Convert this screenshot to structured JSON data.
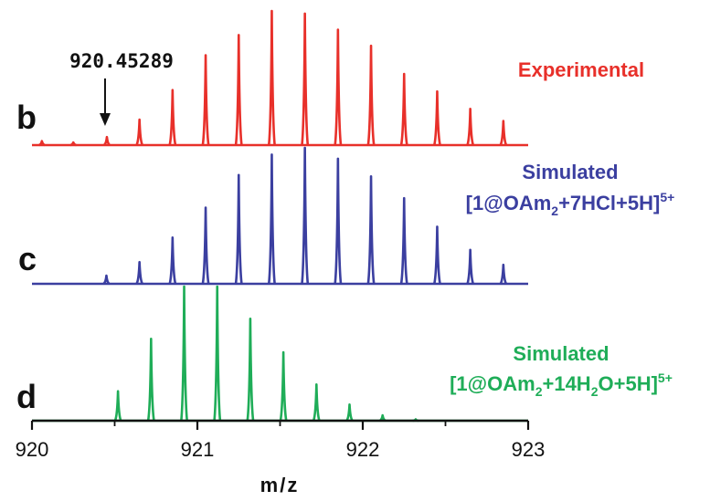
{
  "chart_data": {
    "type": "line",
    "title": "",
    "xlabel": "m/z",
    "ylabel": "",
    "xlim": [
      920,
      923
    ],
    "xticks": [
      "920",
      "921",
      "922",
      "923"
    ],
    "grid": false,
    "series": [
      {
        "panel": "b",
        "name": "Experimental",
        "label_lines": [
          "Experimental"
        ],
        "color": "#e8302a",
        "x": [
          920.06,
          920.25,
          920.45289,
          920.65,
          920.85,
          921.05,
          921.25,
          921.45,
          921.65,
          921.85,
          922.05,
          922.25,
          922.45,
          922.65,
          922.85
        ],
        "values": [
          0.03,
          0.02,
          0.06,
          0.19,
          0.41,
          0.67,
          0.82,
          1.0,
          0.98,
          0.86,
          0.74,
          0.53,
          0.4,
          0.27,
          0.18
        ]
      },
      {
        "panel": "c",
        "name": "Simulated",
        "label_lines": [
          "Simulated",
          "[1@OAm2+7HCl+5H]5+"
        ],
        "color": "#3b3fa0",
        "x": [
          920.45,
          920.65,
          920.85,
          921.05,
          921.25,
          921.45,
          921.65,
          921.85,
          922.05,
          922.25,
          922.45,
          922.65,
          922.85
        ],
        "values": [
          0.06,
          0.16,
          0.34,
          0.56,
          0.8,
          0.95,
          1.0,
          0.92,
          0.79,
          0.63,
          0.42,
          0.25,
          0.14
        ]
      },
      {
        "panel": "d",
        "name": "Simulated",
        "label_lines": [
          "Simulated",
          "[1@OAm2+14H2O+5H]5+"
        ],
        "color": "#1fad58",
        "x": [
          920.52,
          920.72,
          920.92,
          921.12,
          921.32,
          921.52,
          921.72,
          921.92,
          922.12,
          922.32
        ],
        "values": [
          0.22,
          0.61,
          1.0,
          1.0,
          0.76,
          0.51,
          0.27,
          0.12,
          0.04,
          0.01
        ]
      }
    ],
    "annotations": [
      {
        "text": "920.45289",
        "x": 920.45289,
        "panel": "b",
        "arrow": true
      }
    ]
  }
}
